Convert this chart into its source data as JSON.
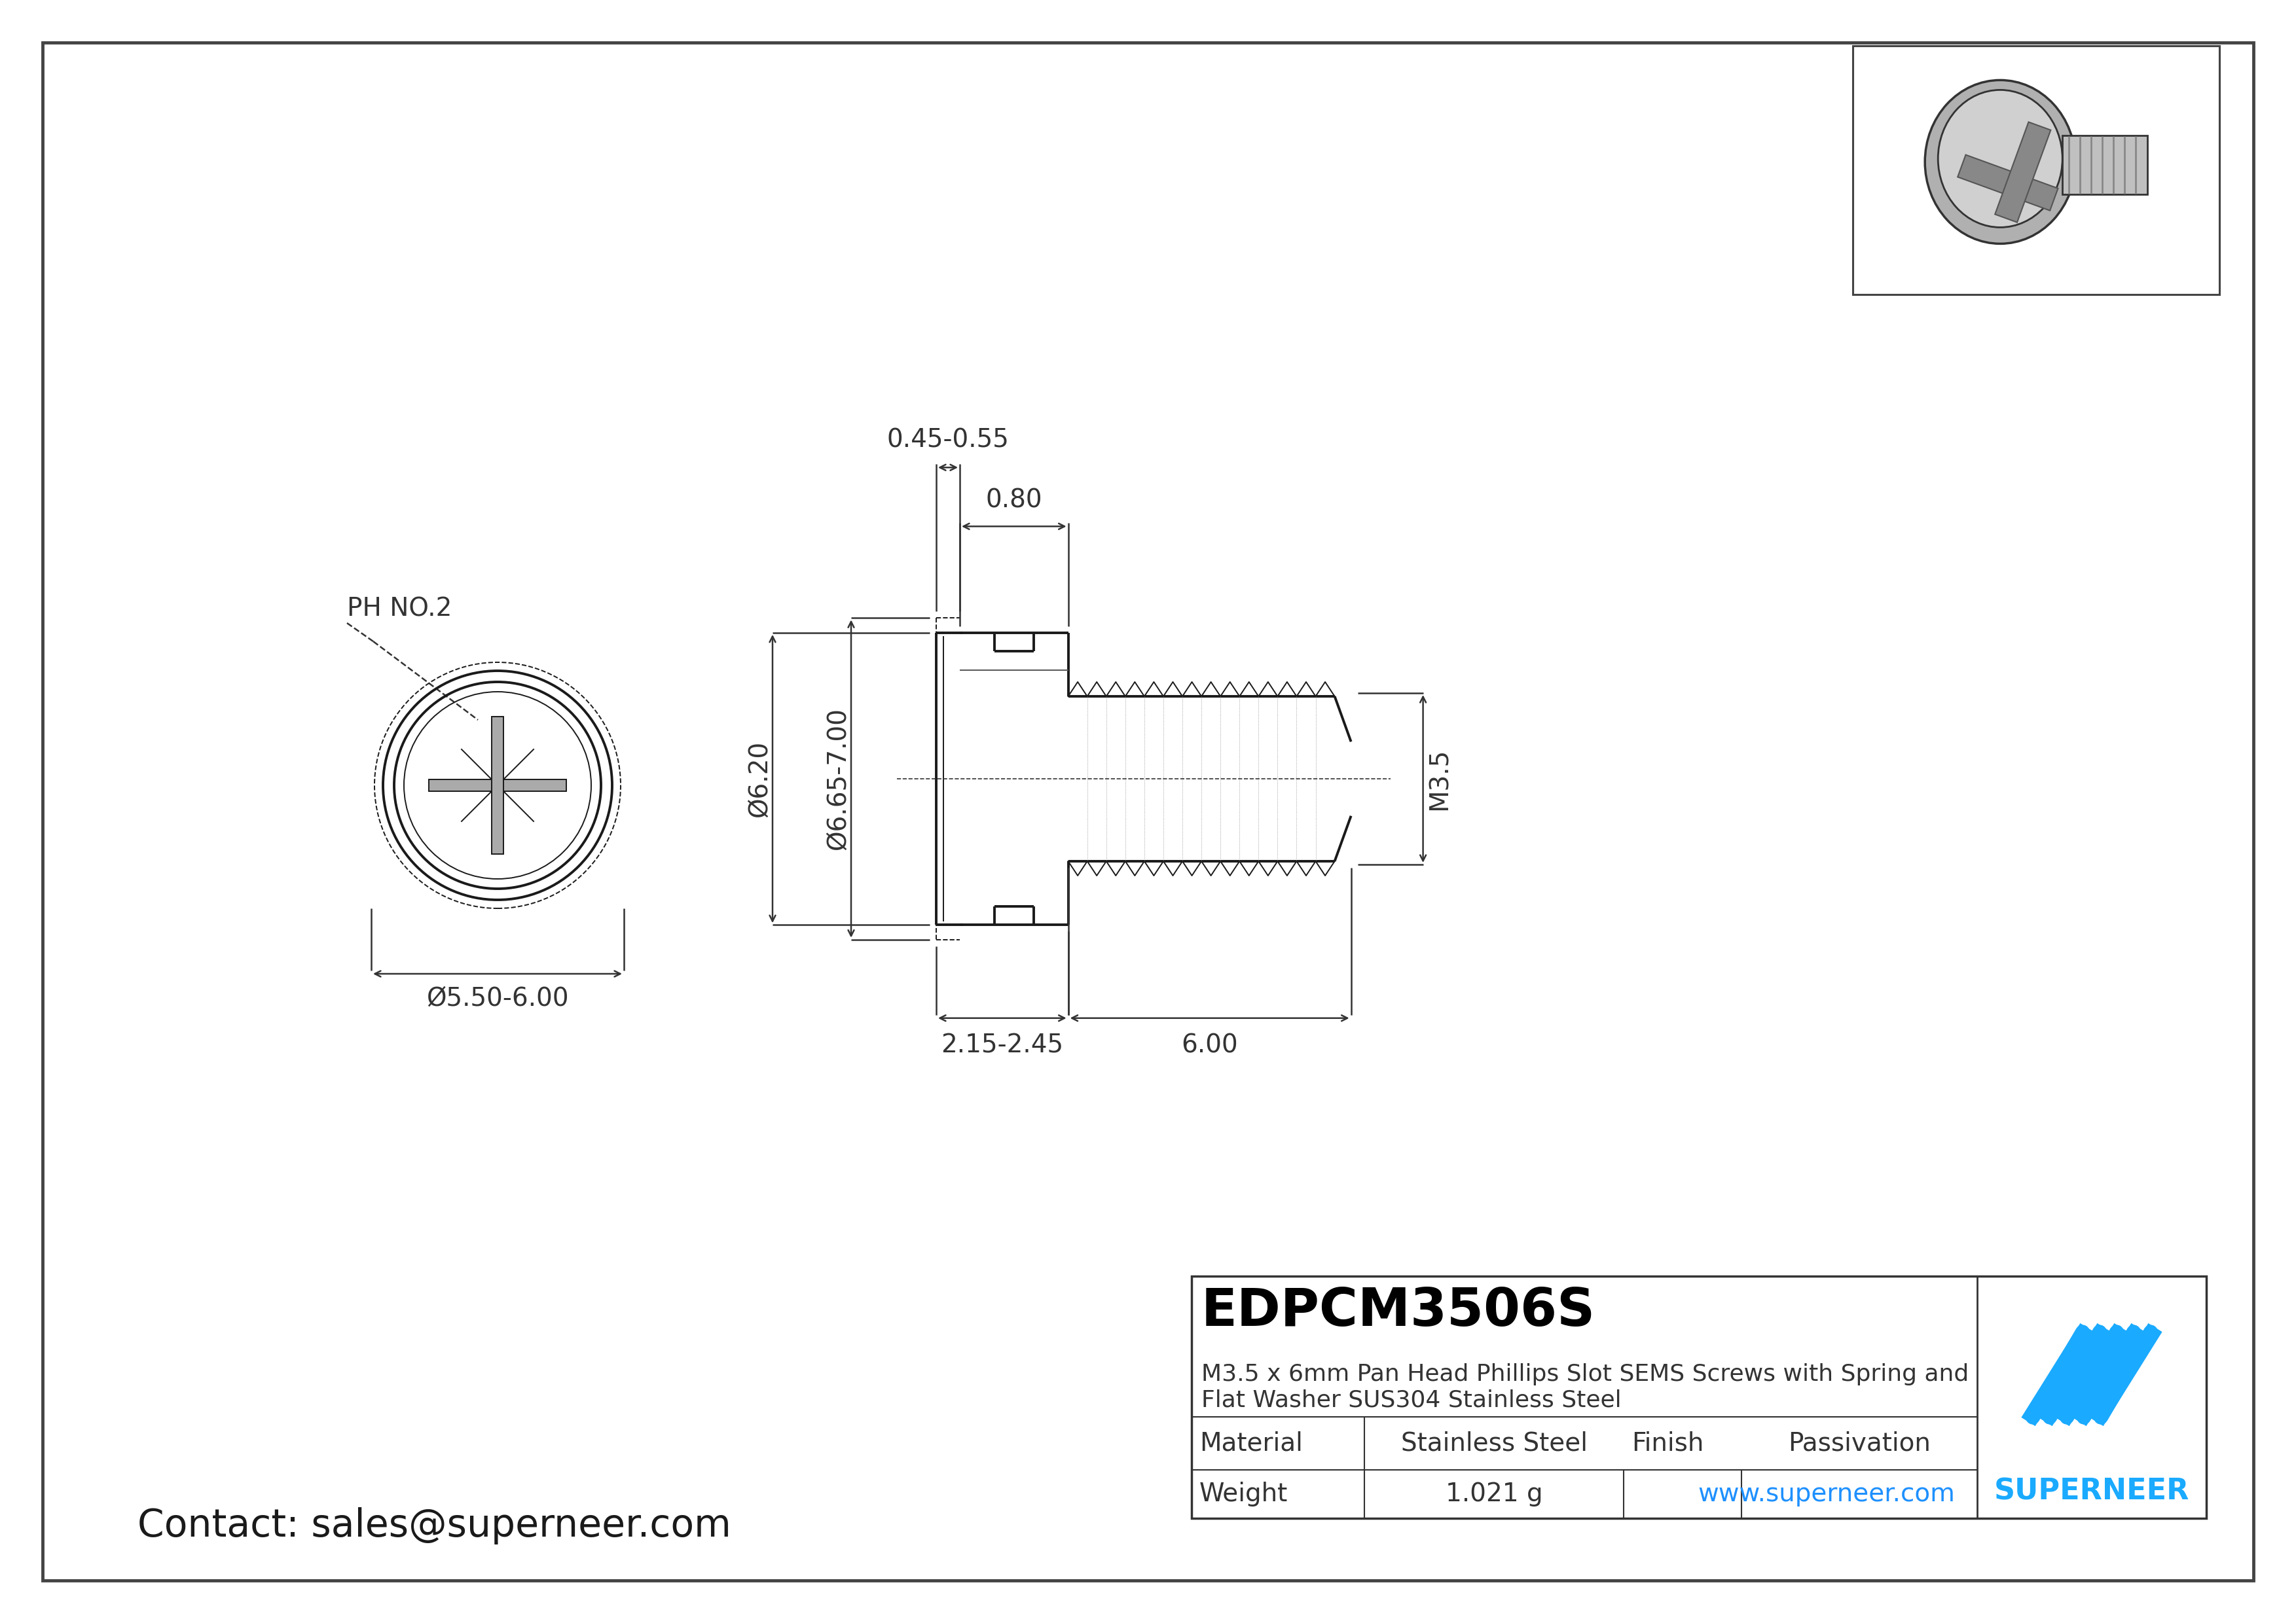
{
  "page_bg": "#ffffff",
  "line_color": "#1a1a1a",
  "dim_color": "#333333",
  "blue_color": "#1e90ff",
  "title_code": "EDPCM3506S",
  "title_desc": "M3.5 x 6mm Pan Head Phillips Slot SEMS Screws with Spring and\nFlat Washer SUS304 Stainless Steel",
  "material": "Stainless Steel",
  "finish": "Passivation",
  "weight": "1.021 g",
  "website": "www.superneer.com",
  "contact": "Contact: sales@superneer.com",
  "ph_label": "PH NO.2",
  "dim_diam_head": "Ø5.50-6.00",
  "dim_diam_washer": "Ø6.65-7.00",
  "dim_diam_shank": "Ø6.20",
  "dim_head_height": "0.80",
  "dim_washer_thick": "0.45-0.55",
  "dim_body_len": "2.15-2.45",
  "dim_thread_len": "6.00",
  "dim_thread_dia": "M3.5",
  "superneer_color": "#1aaaff",
  "lw_main": 2.8,
  "lw_dim": 1.8,
  "lw_thin": 1.4,
  "lw_border": 3.5,
  "fs_dim": 28,
  "fs_label": 28,
  "fs_contact": 42,
  "fs_title_code": 58,
  "fs_title_desc": 26,
  "fs_table": 28
}
